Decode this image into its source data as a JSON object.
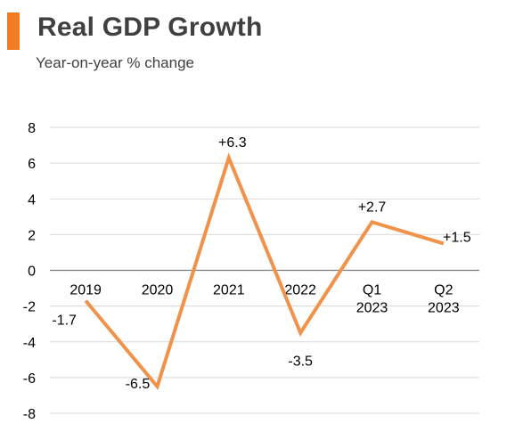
{
  "header": {
    "title": "Real GDP Growth",
    "subtitle": "Year-on-year % change",
    "accent_color": "#F47C20"
  },
  "chart_data": {
    "type": "line",
    "title": "Real GDP Growth",
    "subtitle": "Year-on-year % change",
    "xlabel": "",
    "ylabel": "",
    "categories": [
      [
        "2019"
      ],
      [
        "2020"
      ],
      [
        "2021"
      ],
      [
        "2022"
      ],
      [
        "Q1",
        "2023"
      ],
      [
        "Q2",
        "2023"
      ]
    ],
    "series": [
      {
        "values": [
          -1.7,
          -6.5,
          6.3,
          -3.5,
          2.7,
          1.5
        ],
        "data_labels": [
          "-1.7",
          "-6.5",
          "+6.3",
          "-3.5",
          "+2.7",
          "+1.5"
        ],
        "color": "#F0924A"
      }
    ],
    "ylim": [
      -8,
      8
    ],
    "yticks": [
      -8,
      -6,
      -4,
      -2,
      0,
      2,
      4,
      6,
      8
    ],
    "grid": true,
    "legend": "none",
    "grid_color": "#D9D9D9",
    "zero_line_color": "#7F7F7F"
  }
}
